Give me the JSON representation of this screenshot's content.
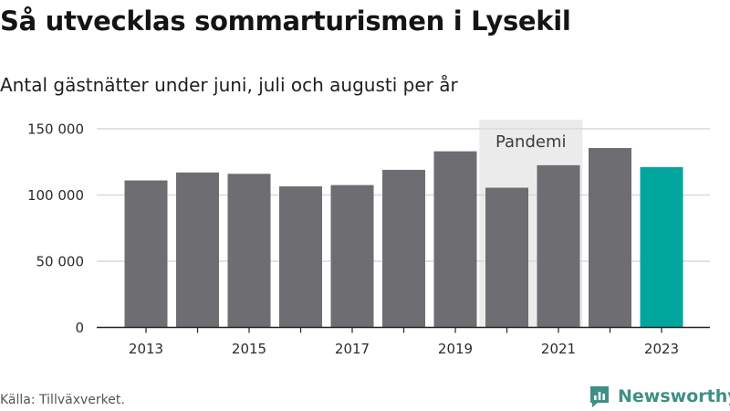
{
  "title": "Så utvecklas sommarturismen i Lysekil",
  "subtitle": "Antal gästnätter under juni, juli och augusti per år",
  "source": "Källa: Tillväxverket.",
  "brand": "Newsworthy",
  "colors": {
    "bar": "#6e6d72",
    "highlight": "#00a69c",
    "annotation_bg": "#ebebeb",
    "grid": "#d9d9d9",
    "axis": "#222222",
    "brand": "#3f8f84"
  },
  "chart_data": {
    "type": "bar",
    "title": "Så utvecklas sommarturismen i Lysekil",
    "subtitle": "Antal gästnätter under juni, juli och augusti per år",
    "categories": [
      "2013",
      "2014",
      "2015",
      "2016",
      "2017",
      "2018",
      "2019",
      "2020",
      "2021",
      "2022",
      "2023"
    ],
    "values": [
      111000,
      117000,
      116000,
      106500,
      107500,
      119000,
      133000,
      105500,
      122500,
      135500,
      121000
    ],
    "highlight": [
      "2023"
    ],
    "x_tick_labels": [
      "2013",
      "2015",
      "2017",
      "2019",
      "2021",
      "2023"
    ],
    "y_ticks": [
      0,
      50000,
      100000,
      150000
    ],
    "y_tick_labels": [
      "0",
      "50 000",
      "100 000",
      "150 000"
    ],
    "ylim": [
      0,
      150000
    ],
    "xlabel": "",
    "ylabel": "",
    "grid": true,
    "annotations": [
      {
        "label": "Pandemi",
        "span": [
          "2020",
          "2021"
        ]
      }
    ]
  }
}
